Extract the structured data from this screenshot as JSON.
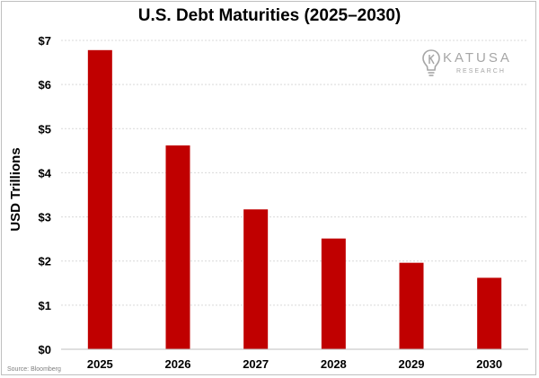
{
  "chart_data": {
    "type": "bar",
    "title": "U.S. Debt Maturities (2025–2030)",
    "xlabel": "",
    "ylabel": "USD Trillions",
    "categories": [
      "2025",
      "2026",
      "2027",
      "2028",
      "2029",
      "2030"
    ],
    "values": [
      6.78,
      4.62,
      3.17,
      2.51,
      1.96,
      1.62
    ],
    "ylim": [
      0,
      7
    ],
    "yticks": [
      0,
      1,
      2,
      3,
      4,
      5,
      6,
      7
    ],
    "ytick_labels": [
      "$0",
      "$1",
      "$2",
      "$3",
      "$4",
      "$5",
      "$6",
      "$7"
    ],
    "grid": true,
    "legend": "none",
    "bar_color": "#c00000",
    "source": "Source: Bloomberg"
  },
  "logo": {
    "name": "KATUSA",
    "sub": "RESEARCH"
  }
}
